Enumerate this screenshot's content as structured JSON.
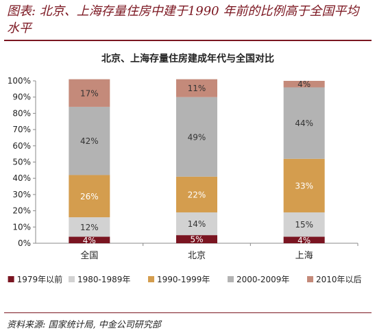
{
  "figure_title": "图表: 北京、上海存量住房中建于1990 年前的比例高于全国平均水平",
  "source_note": "资料来源: 国家统计局, 中金公司研究部",
  "chart_data": {
    "type": "bar",
    "stacked": true,
    "title": "北京、上海存量住房建成年代与全国对比",
    "categories": [
      "全国",
      "北京",
      "上海"
    ],
    "ylim": [
      0,
      100
    ],
    "yticks": [
      "0%",
      "10%",
      "20%",
      "30%",
      "40%",
      "50%",
      "60%",
      "70%",
      "80%",
      "90%",
      "100%"
    ],
    "grid": false,
    "legend_position": "bottom",
    "series": [
      {
        "name": "1979年以前",
        "color": "#7a1521",
        "values": [
          4,
          5,
          4
        ],
        "labels": [
          "4%",
          "5%",
          "4%"
        ],
        "label_color": "#ffffff"
      },
      {
        "name": "1980-1989年",
        "color": "#d2d2d2",
        "values": [
          12,
          14,
          15
        ],
        "labels": [
          "12%",
          "14%",
          "15%"
        ],
        "label_color": "#333333"
      },
      {
        "name": "1990-1999年",
        "color": "#d49d4e",
        "values": [
          26,
          22,
          33
        ],
        "labels": [
          "26%",
          "22%",
          "33%"
        ],
        "label_color": "#ffffff"
      },
      {
        "name": "2000-2009年",
        "color": "#b3b3b3",
        "values": [
          42,
          49,
          44
        ],
        "labels": [
          "42%",
          "49%",
          "44%"
        ],
        "label_color": "#333333"
      },
      {
        "name": "2010年以后",
        "color": "#c48a7a",
        "values": [
          17,
          11,
          4
        ],
        "labels": [
          "17%",
          "11%",
          "4%"
        ],
        "label_color": "#333333"
      }
    ]
  }
}
